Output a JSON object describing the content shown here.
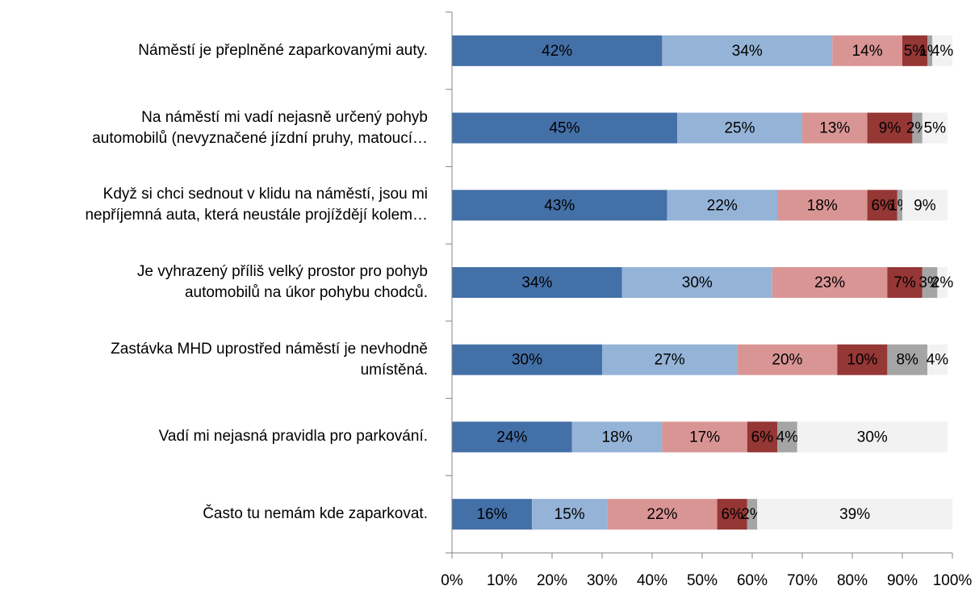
{
  "chart_data": {
    "type": "stacked_barh",
    "categories": [
      "Náměstí je přeplněné zaparkovanými auty.",
      "Na náměstí mi vadí nejasně určený pohyb\nautomobilů (nevyznačené jízdní pruhy, matoucí…",
      "Když si chci sednout v klidu na náměstí, jsou mi\nnepříjemná auta, která neustále projíždějí kolem…",
      "Je vyhrazený příliš velký prostor pro pohyb\nautomobilů na úkor pohybu chodců.",
      "Zastávka MHD uprostřed náměstí je nevhodně\numístěná.",
      "Vadí mi nejasná pravidla pro parkování.",
      "Často tu nemám kde zaparkovat."
    ],
    "series": [
      {
        "color": "#4470a8",
        "values": [
          42,
          45,
          43,
          34,
          30,
          24,
          16
        ],
        "value_labels": [
          "42%",
          "45%",
          "43%",
          "34%",
          "30%",
          "24%",
          "16%"
        ]
      },
      {
        "color": "#95b3d7",
        "values": [
          34,
          25,
          22,
          30,
          27,
          18,
          15
        ],
        "value_labels": [
          "34%",
          "25%",
          "22%",
          "30%",
          "27%",
          "18%",
          "15%"
        ]
      },
      {
        "color": "#d99594",
        "values": [
          14,
          13,
          18,
          23,
          20,
          17,
          22
        ],
        "value_labels": [
          "14%",
          "13%",
          "18%",
          "23%",
          "20%",
          "17%",
          "22%"
        ]
      },
      {
        "color": "#953735",
        "values": [
          5,
          9,
          6,
          7,
          10,
          6,
          6
        ],
        "value_labels": [
          "5%",
          "9%",
          "6%",
          "7%",
          "10%",
          "6%",
          "6%"
        ]
      },
      {
        "color": "#a5a5a5",
        "values": [
          1,
          2,
          1,
          3,
          8,
          4,
          2
        ],
        "value_labels": [
          "1%",
          "2%",
          "1%",
          "3%",
          "8%",
          "4%",
          "2%"
        ]
      },
      {
        "color": "#f2f2f2",
        "values": [
          4,
          5,
          9,
          2,
          4,
          30,
          39
        ],
        "value_labels": [
          "4%",
          "5%",
          "9%",
          "2%",
          "4%",
          "30%",
          "39%"
        ]
      }
    ],
    "xlim": [
      0,
      100
    ],
    "xticks": [
      {
        "value": 0,
        "label": "0%"
      },
      {
        "value": 10,
        "label": "10%"
      },
      {
        "value": 20,
        "label": "20%"
      },
      {
        "value": 30,
        "label": "30%"
      },
      {
        "value": 40,
        "label": "40%"
      },
      {
        "value": 50,
        "label": "50%"
      },
      {
        "value": 60,
        "label": "60%"
      },
      {
        "value": 70,
        "label": "70%"
      },
      {
        "value": 80,
        "label": "80%"
      },
      {
        "value": 90,
        "label": "90%"
      },
      {
        "value": 100,
        "label": "100%"
      }
    ]
  }
}
